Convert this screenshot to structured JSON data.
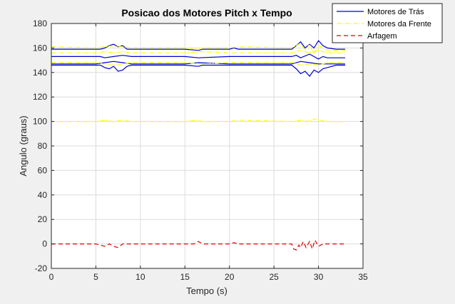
{
  "chart_data": {
    "type": "line",
    "title": "Posicao dos Motores Pitch x Tempo",
    "xlabel": "Tempo (s)",
    "ylabel": "Angulo (graus)",
    "xlim": [
      0,
      35
    ],
    "ylim": [
      -20,
      180
    ],
    "xticks": [
      0,
      5,
      10,
      15,
      20,
      25,
      30,
      35
    ],
    "yticks": [
      -20,
      0,
      20,
      40,
      60,
      80,
      100,
      120,
      140,
      160,
      180
    ],
    "grid": true,
    "legend_position": "top-right, outside axes",
    "series": [
      {
        "name": "Motores de Trás",
        "color": "#0000cc",
        "style": "solid",
        "lines": [
          {
            "x": [
              0,
              5,
              5.5,
              6,
              6.5,
              7,
              7.5,
              8,
              8.5,
              9,
              15,
              16.5,
              17,
              20,
              20.5,
              21,
              27,
              27.5,
              28,
              28.5,
              29,
              29.5,
              30,
              30.5,
              31,
              32,
              33
            ],
            "y": [
              159,
              159,
              159,
              160,
              162,
              163,
              161,
              162,
              159,
              159,
              159,
              158,
              159,
              159,
              160,
              159,
              159,
              162,
              165,
              160,
              163,
              160,
              166,
              162,
              160,
              159,
              159
            ]
          },
          {
            "x": [
              0,
              5,
              5.5,
              6,
              7,
              8,
              9,
              15,
              16.5,
              20,
              21,
              27,
              27.5,
              28,
              29,
              30,
              30.5,
              31,
              33
            ],
            "y": [
              153,
              153,
              153,
              152,
              153,
              154,
              153,
              153,
              152,
              153,
              153,
              153,
              154,
              152,
              155,
              151,
              153,
              152,
              152
            ]
          },
          {
            "x": [
              0,
              5,
              6,
              7,
              8,
              9,
              15,
              16.5,
              20,
              21,
              27,
              28,
              29,
              30,
              31,
              33
            ],
            "y": [
              147,
              147,
              148,
              149,
              148,
              147,
              147,
              148,
              147,
              147,
              147,
              149,
              148,
              147,
              147,
              147
            ]
          },
          {
            "x": [
              0,
              5,
              5.5,
              6,
              6.5,
              7,
              7.5,
              8,
              8.5,
              9,
              15,
              16.5,
              17,
              20,
              21,
              27,
              27.5,
              28,
              28.5,
              29,
              29.5,
              30,
              30.5,
              31,
              32,
              33
            ],
            "y": [
              146,
              146,
              146,
              144,
              143,
              145,
              141,
              142,
              145,
              146,
              146,
              145,
              146,
              146,
              146,
              146,
              143,
              139,
              141,
              137,
              142,
              140,
              143,
              144,
              146,
              146
            ]
          }
        ]
      },
      {
        "name": "Motores da Frente",
        "color": "#ffff00",
        "style": "dashdot",
        "lines": [
          {
            "x": [
              0,
              5,
              6,
              7,
              8,
              9,
              15,
              16,
              17,
              20,
              21,
              27,
              27.5,
              28,
              28.5,
              29,
              29.5,
              30,
              31,
              33
            ],
            "y": [
              161,
              160,
              161,
              162,
              161,
              160,
              160,
              159,
              160,
              160,
              161,
              160,
              162,
              164,
              158,
              163,
              155,
              162,
              158,
              158
            ]
          },
          {
            "x": [
              0,
              5,
              6,
              7,
              8,
              9,
              15,
              17,
              20,
              21,
              27,
              28,
              29,
              30,
              31,
              33
            ],
            "y": [
              156,
              156,
              157,
              156,
              157,
              156,
              156,
              157,
              156,
              156,
              156,
              158,
              156,
              158,
              156,
              156
            ]
          },
          {
            "x": [
              0,
              5,
              6,
              7,
              8,
              9,
              15,
              17,
              20,
              21,
              27,
              28,
              29,
              30,
              31,
              33
            ],
            "y": [
              148,
              148,
              147,
              146,
              147,
              148,
              148,
              147,
              148,
              148,
              148,
              146,
              147,
              146,
              148,
              148
            ]
          },
          {
            "x": [
              0,
              5,
              6,
              7,
              8,
              9,
              15,
              16.5,
              17,
              20,
              21,
              27,
              28,
              29,
              29.5,
              30,
              31,
              33
            ],
            "y": [
              100,
              100,
              101,
              100,
              101,
              100,
              100,
              101,
              100,
              100,
              101,
              100,
              101,
              100,
              102,
              101,
              100,
              100
            ]
          }
        ]
      },
      {
        "name": "Arfagem",
        "color": "#dd0000",
        "style": "dashed",
        "lines": [
          {
            "x": [
              0,
              5,
              5.5,
              6,
              6.5,
              7,
              7.5,
              8,
              9,
              16,
              16.5,
              17,
              20,
              20.5,
              21,
              27,
              27.2,
              27.5,
              27.8,
              28,
              28.3,
              28.6,
              29,
              29.3,
              29.6,
              30,
              30.5,
              31,
              33
            ],
            "y": [
              0,
              0,
              -1,
              -2,
              0,
              -2,
              -3,
              0,
              0,
              0,
              2,
              0,
              0,
              1,
              0,
              0,
              -4,
              -5,
              -1,
              -3,
              2,
              -3,
              2,
              -4,
              3,
              -2,
              0,
              0,
              0
            ]
          }
        ]
      }
    ]
  }
}
